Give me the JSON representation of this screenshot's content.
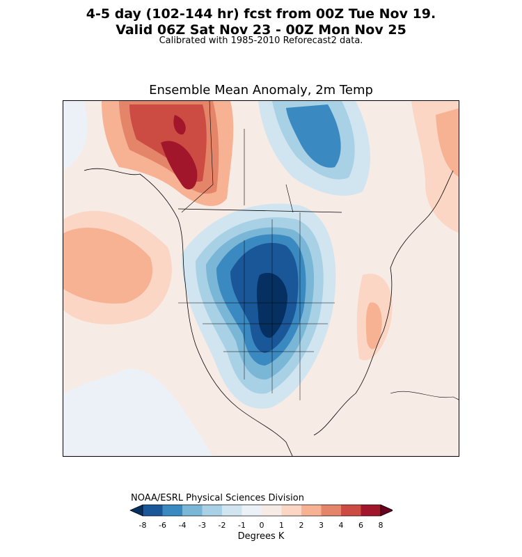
{
  "header": {
    "line1": "4-5 day (102-144 hr) fcst from 00Z Tue Nov 19.",
    "line2": "Valid 06Z Sat Nov 23 - 00Z Mon Nov 25",
    "subtitle": "Calibrated with 1985-2010 Reforecast2 data."
  },
  "plot": {
    "title": "Ensemble Mean Anomaly, 2m Temp"
  },
  "footer": {
    "credit": "NOAA/ESRL Physical Sciences Division"
  },
  "colorbar": {
    "label": "Degrees K",
    "ticks": [
      "-8",
      "-6",
      "-4",
      "-3",
      "-2",
      "-1",
      "0",
      "1",
      "2",
      "3",
      "4",
      "6",
      "8"
    ],
    "colors": [
      "#053061",
      "#1a5798",
      "#3a89c1",
      "#7ab6d6",
      "#a9d1e5",
      "#d1e5f0",
      "#ebf1f6",
      "#f7ebe6",
      "#fbd6c4",
      "#f6b293",
      "#e48468",
      "#cc4c44",
      "#a2162b",
      "#67001f"
    ]
  },
  "map": {
    "region": "North America",
    "variable": "2m temperature anomaly"
  }
}
